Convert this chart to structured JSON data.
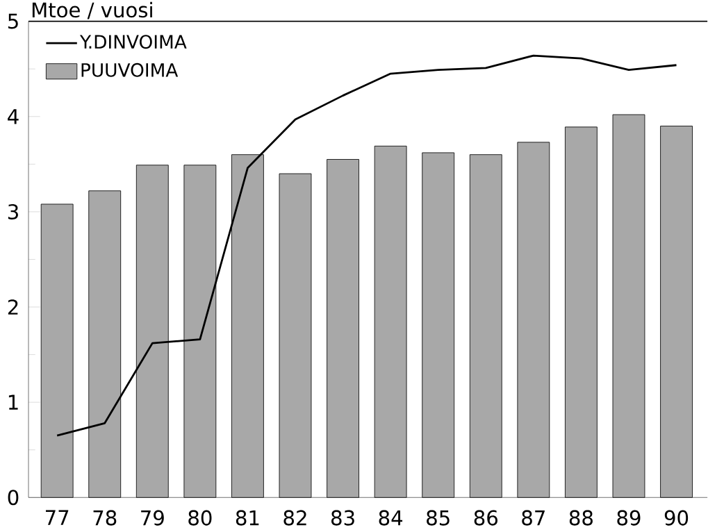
{
  "chart_data": {
    "type": "bar",
    "ylabel": "Mtoe / vuosi",
    "categories": [
      "77",
      "78",
      "79",
      "80",
      "81",
      "82",
      "83",
      "84",
      "85",
      "86",
      "87",
      "88",
      "89",
      "90"
    ],
    "series": [
      {
        "name": "Y.DINVOIMA",
        "type": "line",
        "color": "#000000",
        "values": [
          0.65,
          0.78,
          1.62,
          1.66,
          3.46,
          3.97,
          4.22,
          4.45,
          4.49,
          4.51,
          4.64,
          4.61,
          4.49,
          4.54
        ]
      },
      {
        "name": "PUUVOIMA",
        "color": "#a8a8a8",
        "values": [
          3.08,
          3.22,
          3.49,
          3.49,
          3.6,
          3.4,
          3.55,
          3.69,
          3.62,
          3.6,
          3.73,
          3.89,
          4.02,
          3.9
        ]
      }
    ],
    "ylim": [
      0,
      5
    ],
    "yticks": [
      0,
      1,
      2,
      3,
      4,
      5
    ],
    "legend": "top left",
    "marker": "none"
  }
}
